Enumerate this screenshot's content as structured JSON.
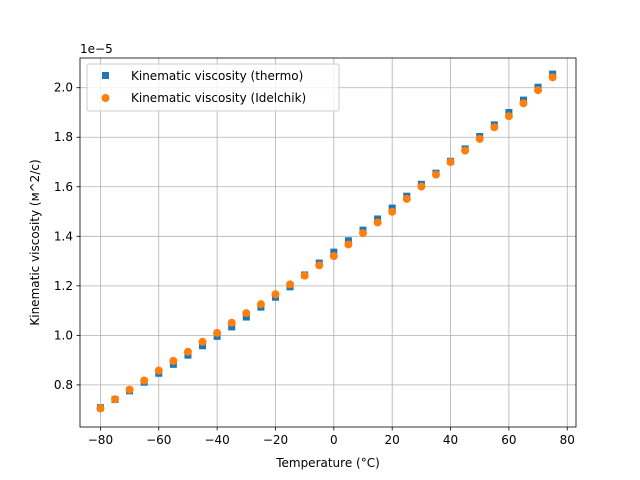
{
  "chart_data": {
    "type": "scatter",
    "xlabel": "Temperature (°C)",
    "ylabel": "Kinematic viscosity (м^2/с)",
    "y_offset_label": "1e−5",
    "xlim": [
      -87,
      83
    ],
    "ylim": [
      0.63,
      2.12
    ],
    "x_ticks": [
      -80,
      -60,
      -40,
      -20,
      0,
      20,
      40,
      60,
      80
    ],
    "x_tick_labels": [
      "−80",
      "−60",
      "−40",
      "−20",
      "0",
      "20",
      "40",
      "60",
      "80"
    ],
    "y_ticks": [
      0.8,
      1.0,
      1.2,
      1.4,
      1.6,
      1.8,
      2.0
    ],
    "y_tick_labels": [
      "0.8",
      "1.0",
      "1.2",
      "1.4",
      "1.6",
      "1.8",
      "2.0"
    ],
    "grid": true,
    "legend_position": "upper-left",
    "x": [
      -80,
      -75,
      -70,
      -65,
      -60,
      -55,
      -50,
      -45,
      -40,
      -35,
      -30,
      -25,
      -20,
      -15,
      -10,
      -5,
      0,
      5,
      10,
      15,
      20,
      25,
      30,
      35,
      40,
      45,
      50,
      55,
      60,
      65,
      70,
      75
    ],
    "series": [
      {
        "name": "Kinematic viscosity (thermo)",
        "marker": "square",
        "color": "#1f77b4",
        "values": [
          0.708,
          0.741,
          0.776,
          0.811,
          0.847,
          0.883,
          0.92,
          0.958,
          0.996,
          1.034,
          1.074,
          1.114,
          1.154,
          1.196,
          1.244,
          1.292,
          1.336,
          1.382,
          1.425,
          1.47,
          1.514,
          1.562,
          1.61,
          1.655,
          1.703,
          1.753,
          1.803,
          1.85,
          1.9,
          1.95,
          2.002,
          2.055
        ]
      },
      {
        "name": "Kinematic viscosity (Idelchik)",
        "marker": "circle",
        "color": "#ff7f0e",
        "values": [
          0.705,
          0.742,
          0.781,
          0.818,
          0.858,
          0.897,
          0.934,
          0.974,
          1.01,
          1.051,
          1.09,
          1.126,
          1.166,
          1.206,
          1.241,
          1.283,
          1.32,
          1.367,
          1.413,
          1.456,
          1.499,
          1.551,
          1.601,
          1.649,
          1.7,
          1.746,
          1.793,
          1.84,
          1.885,
          1.937,
          1.99,
          2.042
        ]
      }
    ]
  }
}
